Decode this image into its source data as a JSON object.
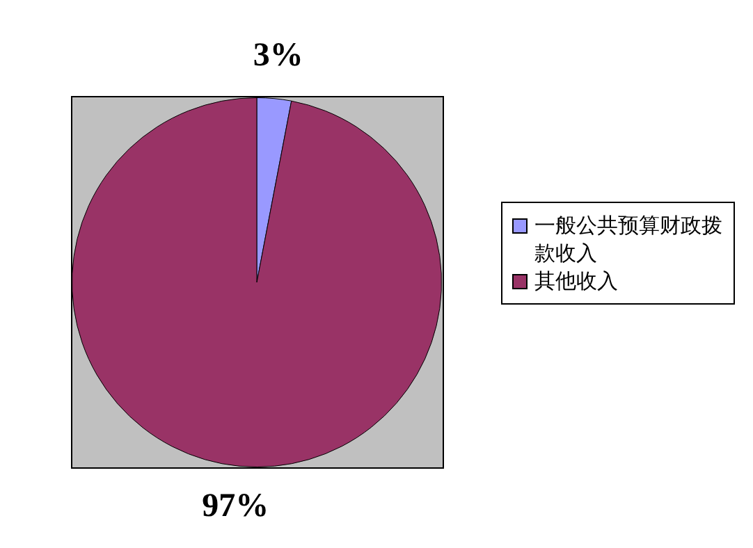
{
  "chart_data": {
    "type": "pie",
    "categories": [
      "一般公共预算财政拨款收入",
      "其他收入"
    ],
    "values": [
      3,
      97
    ],
    "colors": [
      "#9999ff",
      "#993366"
    ],
    "value_labels": [
      "3%",
      "97%"
    ],
    "legend": "right"
  }
}
